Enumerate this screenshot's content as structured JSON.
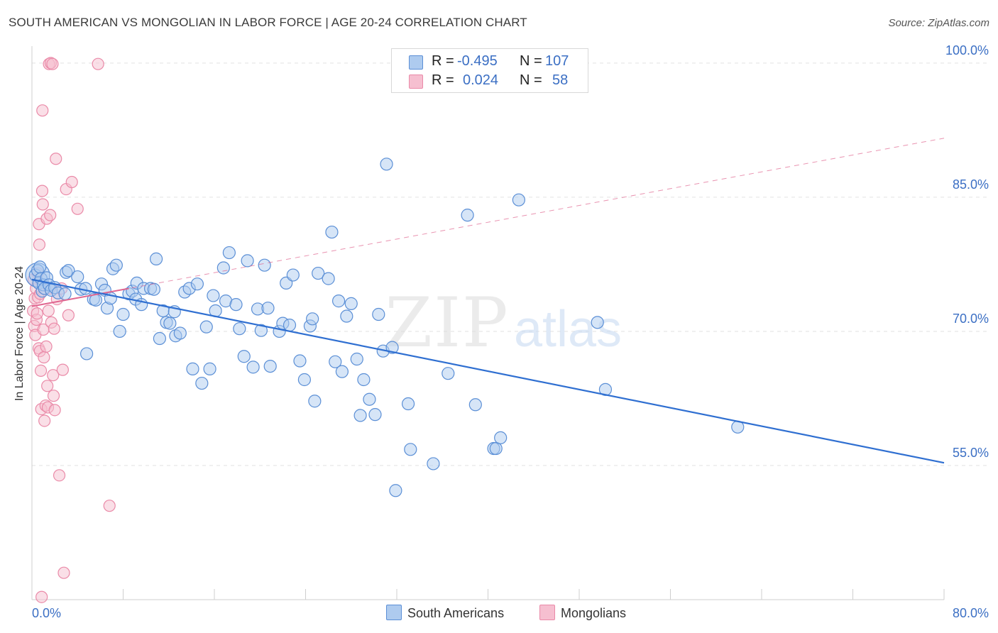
{
  "title": "SOUTH AMERICAN VS MONGOLIAN IN LABOR FORCE | AGE 20-24 CORRELATION CHART",
  "source": "Source: ZipAtlas.com",
  "watermark": {
    "zip": "ZIP",
    "atlas": "atlas"
  },
  "colors": {
    "blue": "#5b8fd6",
    "blue_fill": "#aecbef",
    "blue_line": "#2f6fd1",
    "pink": "#ea8aa8",
    "pink_fill": "#f6bfd0",
    "pink_line": "#e06690",
    "axis_text": "#3b6fc4",
    "grid": "#e2e2e2"
  },
  "legend": {
    "r_label": "R =",
    "n_label": "N =",
    "series": [
      {
        "name": "South Americans",
        "r": "-0.495",
        "n": "107"
      },
      {
        "name": "Mongolians",
        "r": "0.024",
        "n": "58"
      }
    ]
  },
  "chart_data": {
    "type": "scatter",
    "title": "SOUTH AMERICAN VS MONGOLIAN IN LABOR FORCE | AGE 20-24 CORRELATION CHART",
    "xlabel": "",
    "ylabel": "In Labor Force | Age 20-24",
    "xlim": [
      0,
      80
    ],
    "ylim": [
      40,
      101.5
    ],
    "x_tick_labels": [
      "0.0%",
      "80.0%"
    ],
    "y_ticks": [
      55,
      70,
      85,
      100
    ],
    "y_tick_labels": [
      "55.0%",
      "70.0%",
      "85.0%",
      "100.0%"
    ],
    "legend_position": "top-center",
    "series": [
      {
        "name": "South Americans",
        "trend": {
          "x": [
            0,
            80
          ],
          "y": [
            75.8,
            55.3
          ],
          "style": "solid"
        },
        "points": [
          [
            0.3,
            76.3
          ],
          [
            0.5,
            76.8
          ],
          [
            0.6,
            75.4
          ],
          [
            0.7,
            77.2
          ],
          [
            0.8,
            75.9
          ],
          [
            0.9,
            74.5
          ],
          [
            1.0,
            75.2
          ],
          [
            1.1,
            74.8
          ],
          [
            1.3,
            76.0
          ],
          [
            1.5,
            75.2
          ],
          [
            1.7,
            74.6
          ],
          [
            2.0,
            74.9
          ],
          [
            2.3,
            74.3
          ],
          [
            2.9,
            74.2
          ],
          [
            3.0,
            76.6
          ],
          [
            3.2,
            76.8
          ],
          [
            4.0,
            76.1
          ],
          [
            4.3,
            74.7
          ],
          [
            4.7,
            74.8
          ],
          [
            4.8,
            67.5
          ],
          [
            5.4,
            73.6
          ],
          [
            5.6,
            73.5
          ],
          [
            6.1,
            75.3
          ],
          [
            6.4,
            74.6
          ],
          [
            6.6,
            72.6
          ],
          [
            6.9,
            73.7
          ],
          [
            7.1,
            77.0
          ],
          [
            7.4,
            77.4
          ],
          [
            7.7,
            70.0
          ],
          [
            8.0,
            71.9
          ],
          [
            8.5,
            74.2
          ],
          [
            8.8,
            74.5
          ],
          [
            9.1,
            73.6
          ],
          [
            9.2,
            75.4
          ],
          [
            9.6,
            73.0
          ],
          [
            9.8,
            74.8
          ],
          [
            10.4,
            74.8
          ],
          [
            10.7,
            74.7
          ],
          [
            10.9,
            78.1
          ],
          [
            11.2,
            69.2
          ],
          [
            11.5,
            72.3
          ],
          [
            11.8,
            71.0
          ],
          [
            12.1,
            70.9
          ],
          [
            12.5,
            72.2
          ],
          [
            12.6,
            69.5
          ],
          [
            13.0,
            69.8
          ],
          [
            13.4,
            74.4
          ],
          [
            13.8,
            74.8
          ],
          [
            14.1,
            65.8
          ],
          [
            14.5,
            75.3
          ],
          [
            14.9,
            64.2
          ],
          [
            15.3,
            70.5
          ],
          [
            15.6,
            65.8
          ],
          [
            15.9,
            74.0
          ],
          [
            16.1,
            72.3
          ],
          [
            16.8,
            77.1
          ],
          [
            17.0,
            73.4
          ],
          [
            17.3,
            78.8
          ],
          [
            17.9,
            73.0
          ],
          [
            18.2,
            70.3
          ],
          [
            18.6,
            67.2
          ],
          [
            18.9,
            77.9
          ],
          [
            19.4,
            66.0
          ],
          [
            19.8,
            72.5
          ],
          [
            20.1,
            70.1
          ],
          [
            20.4,
            77.4
          ],
          [
            20.7,
            72.6
          ],
          [
            20.9,
            66.1
          ],
          [
            21.7,
            70.0
          ],
          [
            22.0,
            70.9
          ],
          [
            22.3,
            75.4
          ],
          [
            22.6,
            70.7
          ],
          [
            22.9,
            76.3
          ],
          [
            23.5,
            66.7
          ],
          [
            23.9,
            64.6
          ],
          [
            24.4,
            70.6
          ],
          [
            24.6,
            71.4
          ],
          [
            24.8,
            62.2
          ],
          [
            25.1,
            76.5
          ],
          [
            26.0,
            75.9
          ],
          [
            26.3,
            81.1
          ],
          [
            26.6,
            66.6
          ],
          [
            26.9,
            73.4
          ],
          [
            27.2,
            65.5
          ],
          [
            27.6,
            71.7
          ],
          [
            28.0,
            73.1
          ],
          [
            28.5,
            66.9
          ],
          [
            28.8,
            60.6
          ],
          [
            29.1,
            64.6
          ],
          [
            29.6,
            62.4
          ],
          [
            30.1,
            60.7
          ],
          [
            30.4,
            71.9
          ],
          [
            30.8,
            67.8
          ],
          [
            31.1,
            88.7
          ],
          [
            31.6,
            68.2
          ],
          [
            31.9,
            52.2
          ],
          [
            33.0,
            61.9
          ],
          [
            33.2,
            56.8
          ],
          [
            35.2,
            55.2
          ],
          [
            36.5,
            65.3
          ],
          [
            38.2,
            83.0
          ],
          [
            38.9,
            61.8
          ],
          [
            40.5,
            56.9
          ],
          [
            40.7,
            56.9
          ],
          [
            41.1,
            58.1
          ],
          [
            42.7,
            84.7
          ],
          [
            49.6,
            71.0
          ],
          [
            50.3,
            63.5
          ],
          [
            61.9,
            59.3
          ]
        ]
      },
      {
        "name": "Mongolians",
        "trend": {
          "x": [
            0,
            8.5
          ],
          "y": [
            72.8,
            74.8
          ],
          "style": "solid",
          "extended": {
            "x": [
              0,
              80
            ],
            "y": [
              72.8,
              91.6
            ],
            "style": "dashed"
          }
        },
        "points": [
          [
            0.1,
            72.3
          ],
          [
            0.15,
            75.8
          ],
          [
            0.2,
            70.6
          ],
          [
            0.25,
            73.7
          ],
          [
            0.3,
            69.6
          ],
          [
            0.35,
            74.8
          ],
          [
            0.4,
            71.3
          ],
          [
            0.45,
            72.0
          ],
          [
            0.5,
            76.5
          ],
          [
            0.55,
            73.8
          ],
          [
            0.6,
            68.1
          ],
          [
            0.62,
            82.0
          ],
          [
            0.65,
            79.7
          ],
          [
            0.7,
            67.8
          ],
          [
            0.72,
            74.2
          ],
          [
            0.78,
            65.6
          ],
          [
            0.82,
            61.3
          ],
          [
            0.85,
            40.3
          ],
          [
            0.9,
            85.7
          ],
          [
            0.92,
            94.7
          ],
          [
            0.95,
            84.2
          ],
          [
            1.0,
            70.2
          ],
          [
            1.05,
            67.1
          ],
          [
            1.1,
            60.0
          ],
          [
            1.2,
            61.7
          ],
          [
            1.25,
            68.3
          ],
          [
            1.3,
            82.6
          ],
          [
            1.35,
            63.9
          ],
          [
            1.4,
            61.5
          ],
          [
            1.45,
            72.3
          ],
          [
            1.5,
            99.9
          ],
          [
            1.55,
            74.8
          ],
          [
            1.6,
            83.0
          ],
          [
            1.65,
            100.0
          ],
          [
            1.7,
            71.0
          ],
          [
            1.8,
            99.9
          ],
          [
            1.85,
            65.1
          ],
          [
            1.9,
            62.8
          ],
          [
            1.95,
            70.3
          ],
          [
            2.0,
            61.2
          ],
          [
            2.1,
            89.3
          ],
          [
            2.2,
            73.6
          ],
          [
            2.4,
            53.9
          ],
          [
            2.6,
            74.8
          ],
          [
            2.7,
            65.7
          ],
          [
            2.8,
            43.0
          ],
          [
            3.0,
            85.9
          ],
          [
            3.2,
            71.8
          ],
          [
            3.5,
            86.7
          ],
          [
            4.0,
            83.7
          ],
          [
            5.8,
            99.9
          ],
          [
            6.8,
            50.5
          ]
        ]
      }
    ]
  }
}
